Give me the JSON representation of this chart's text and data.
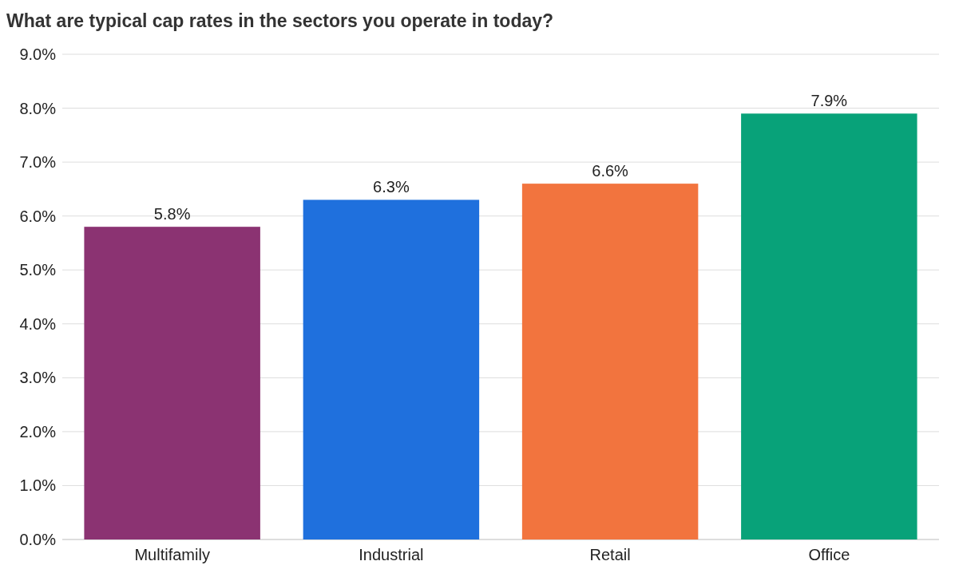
{
  "chart_data": {
    "type": "bar",
    "title": "What are typical cap rates in the sectors you operate in today?",
    "categories": [
      "Multifamily",
      "Industrial",
      "Retail",
      "Office"
    ],
    "values": [
      5.8,
      6.3,
      6.6,
      7.9
    ],
    "colors": [
      "#8b3372",
      "#1f70dd",
      "#f2743e",
      "#08a279"
    ],
    "value_labels": [
      "5.8%",
      "6.3%",
      "6.6%",
      "7.9%"
    ],
    "ylim": [
      0,
      9
    ],
    "yticks": [
      {
        "value": 0,
        "label": "0.0%"
      },
      {
        "value": 1,
        "label": "1.0%"
      },
      {
        "value": 2,
        "label": "2.0%"
      },
      {
        "value": 3,
        "label": "3.0%"
      },
      {
        "value": 4,
        "label": "4.0%"
      },
      {
        "value": 5,
        "label": "5.0%"
      },
      {
        "value": 6,
        "label": "6.0%"
      },
      {
        "value": 7,
        "label": "7.0%"
      },
      {
        "value": 8,
        "label": "8.0%"
      },
      {
        "value": 9,
        "label": "9.0%"
      }
    ],
    "grid": "y"
  }
}
